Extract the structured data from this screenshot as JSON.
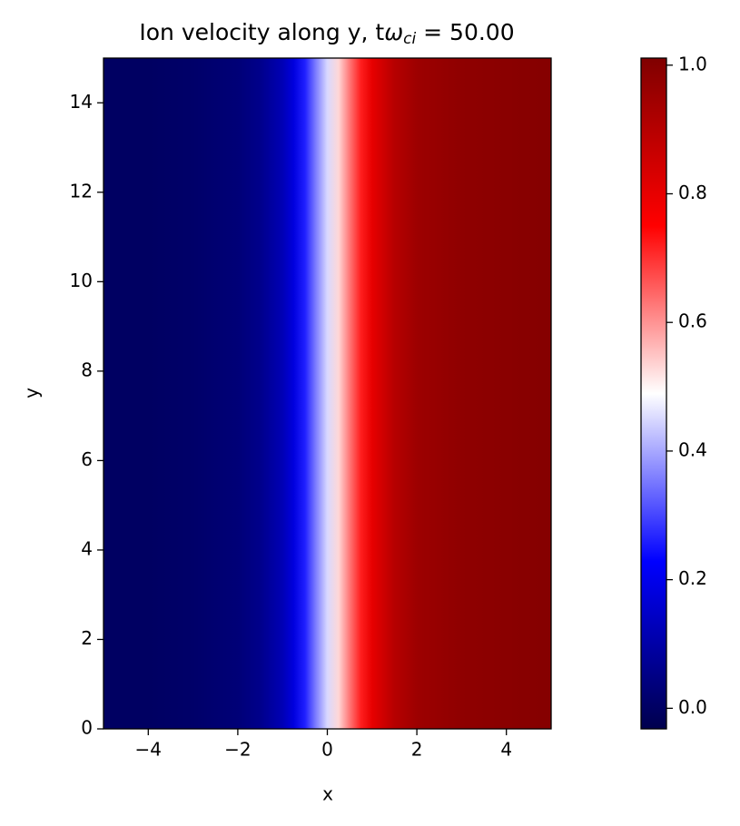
{
  "chart_data": {
    "type": "heatmap",
    "title_parts": [
      "Ion velocity along y, t",
      "ω",
      "ci",
      " = 50.00"
    ],
    "x_label": "x",
    "y_label": "y",
    "colormap": "seismic",
    "x": [
      -5,
      -4,
      -3,
      -2,
      -1.5,
      -1,
      -0.75,
      -0.5,
      -0.25,
      0,
      0.25,
      0.5,
      0.75,
      1,
      1.5,
      2,
      3,
      4,
      5
    ],
    "values": [
      0.0,
      0.0,
      0.01,
      0.03,
      0.06,
      0.12,
      0.18,
      0.26,
      0.36,
      0.45,
      0.53,
      0.63,
      0.72,
      0.8,
      0.9,
      0.95,
      0.98,
      0.99,
      1.0
    ],
    "xlim": [
      -5,
      5
    ],
    "ylim": [
      0,
      15
    ],
    "xticks": [
      {
        "value": -4,
        "label": "−4"
      },
      {
        "value": -2,
        "label": "−2"
      },
      0,
      2,
      4
    ],
    "yticks": [
      0,
      2,
      4,
      6,
      8,
      10,
      12,
      14
    ],
    "clim": [
      -0.032,
      1.011
    ],
    "cticks": [
      {
        "value": 0,
        "label": "0.0"
      },
      0.2,
      0.4,
      0.6,
      0.8,
      {
        "value": 1,
        "label": "1.0"
      }
    ]
  }
}
